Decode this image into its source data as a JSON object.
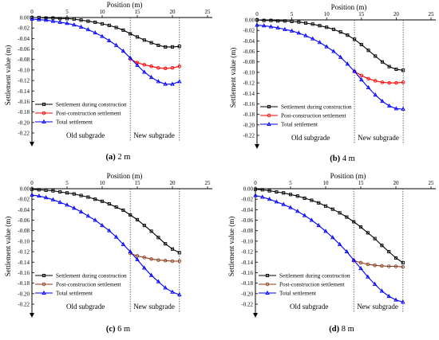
{
  "chart_data": [
    {
      "type": "line",
      "panel_label": "(a) 2 m",
      "xlabel": "Position (m)",
      "ylabel": "Settlement value (m)",
      "xlim": [
        0,
        25
      ],
      "ylim": [
        -0.22,
        0
      ],
      "xticks": [
        "0",
        "5",
        "10",
        "15",
        "20",
        "25"
      ],
      "yticks": [
        "0.00",
        "-0.02",
        "-0.04",
        "-0.06",
        "-0.08",
        "-0.10",
        "-0.12",
        "-0.14",
        "-0.16",
        "-0.18",
        "-0.20",
        "-0.22"
      ],
      "region_labels": [
        "Old subgrade",
        "New subgrade"
      ],
      "boundary_x": 14,
      "end_x": 21,
      "legend_position": "bottom-left",
      "series": [
        {
          "name": "Settlement during construction",
          "color": "#000000",
          "marker": "square",
          "x": [
            0,
            1,
            2,
            3,
            4,
            5,
            6,
            7,
            8,
            9,
            10,
            11,
            12,
            13,
            14,
            15,
            16,
            17,
            18,
            19,
            20,
            21
          ],
          "y": [
            0,
            0,
            -0.001,
            -0.001,
            -0.002,
            -0.002,
            -0.003,
            -0.005,
            -0.007,
            -0.009,
            -0.012,
            -0.015,
            -0.019,
            -0.024,
            -0.031,
            -0.037,
            -0.043,
            -0.048,
            -0.053,
            -0.056,
            -0.056,
            -0.055
          ]
        },
        {
          "name": "Post-construction settlement",
          "color": "#ff0000",
          "marker": "circle",
          "x": [
            14,
            15,
            16,
            17,
            18,
            19,
            20,
            21
          ],
          "y": [
            -0.079,
            -0.086,
            -0.09,
            -0.093,
            -0.096,
            -0.097,
            -0.096,
            -0.093
          ]
        },
        {
          "name": "Total settlement",
          "color": "#0000ff",
          "marker": "triangle",
          "x": [
            0,
            1,
            2,
            3,
            4,
            5,
            6,
            7,
            8,
            9,
            10,
            11,
            12,
            13,
            14,
            15,
            16,
            17,
            18,
            19,
            20,
            21
          ],
          "y": [
            -0.003,
            -0.004,
            -0.005,
            -0.007,
            -0.009,
            -0.011,
            -0.014,
            -0.018,
            -0.023,
            -0.029,
            -0.036,
            -0.044,
            -0.053,
            -0.064,
            -0.077,
            -0.091,
            -0.104,
            -0.114,
            -0.122,
            -0.127,
            -0.127,
            -0.122
          ]
        }
      ]
    },
    {
      "type": "line",
      "panel_label": "(b) 4 m",
      "xlabel": "Position (m)",
      "ylabel": "Settlement value (m)",
      "xlim": [
        0,
        25
      ],
      "ylim": [
        -0.22,
        0
      ],
      "xticks": [
        "0",
        "5",
        "10",
        "15",
        "20",
        "25"
      ],
      "yticks": [
        "0.00",
        "-0.02",
        "-0.04",
        "-0.06",
        "-0.08",
        "-0.10",
        "-0.12",
        "-0.14",
        "-0.16",
        "-0.18",
        "-0.20",
        "-0.22"
      ],
      "region_labels": [
        "Old subgrade",
        "New subgrade"
      ],
      "boundary_x": 14,
      "end_x": 21,
      "legend_position": "bottom-left",
      "series": [
        {
          "name": "Settlement during construction",
          "color": "#000000",
          "marker": "square",
          "x": [
            0,
            1,
            2,
            3,
            4,
            5,
            6,
            7,
            8,
            9,
            10,
            11,
            12,
            13,
            14,
            15,
            16,
            17,
            18,
            19,
            20,
            21
          ],
          "y": [
            0,
            -0.001,
            -0.001,
            -0.002,
            -0.002,
            -0.003,
            -0.004,
            -0.006,
            -0.008,
            -0.011,
            -0.014,
            -0.018,
            -0.023,
            -0.029,
            -0.037,
            -0.047,
            -0.058,
            -0.069,
            -0.08,
            -0.089,
            -0.094,
            -0.096
          ]
        },
        {
          "name": "Post-construction settlement",
          "color": "#ff0000",
          "marker": "circle",
          "x": [
            14,
            15,
            16,
            17,
            18,
            19,
            20,
            21
          ],
          "y": [
            -0.098,
            -0.106,
            -0.112,
            -0.116,
            -0.119,
            -0.12,
            -0.12,
            -0.119
          ]
        },
        {
          "name": "Total settlement",
          "color": "#0000ff",
          "marker": "triangle",
          "x": [
            0,
            1,
            2,
            3,
            4,
            5,
            6,
            7,
            8,
            9,
            10,
            11,
            12,
            13,
            14,
            15,
            16,
            17,
            18,
            19,
            20,
            21
          ],
          "y": [
            -0.01,
            -0.011,
            -0.013,
            -0.015,
            -0.018,
            -0.021,
            -0.025,
            -0.03,
            -0.036,
            -0.043,
            -0.051,
            -0.06,
            -0.071,
            -0.084,
            -0.098,
            -0.114,
            -0.129,
            -0.143,
            -0.155,
            -0.164,
            -0.169,
            -0.17
          ]
        }
      ]
    },
    {
      "type": "line",
      "panel_label": "(c) 6 m",
      "xlabel": "Position (m)",
      "ylabel": "Settlement value (m)",
      "xlim": [
        0,
        25
      ],
      "ylim": [
        -0.22,
        0
      ],
      "xticks": [
        "0",
        "5",
        "10",
        "15",
        "20",
        "25"
      ],
      "yticks": [
        "0.00",
        "-0.02",
        "-0.04",
        "-0.06",
        "-0.08",
        "-0.10",
        "-0.12",
        "-0.14",
        "-0.16",
        "-0.18",
        "-0.20",
        "-0.22"
      ],
      "region_labels": [
        "Old subgrade",
        "New subgrade"
      ],
      "boundary_x": 14,
      "end_x": 21,
      "legend_position": "bottom-left",
      "series": [
        {
          "name": "Settlement during construction",
          "color": "#000000",
          "marker": "square",
          "x": [
            0,
            1,
            2,
            3,
            4,
            5,
            6,
            7,
            8,
            9,
            10,
            11,
            12,
            13,
            14,
            15,
            16,
            17,
            18,
            19,
            20,
            21
          ],
          "y": [
            -0.001,
            -0.002,
            -0.003,
            -0.004,
            -0.006,
            -0.008,
            -0.01,
            -0.013,
            -0.016,
            -0.02,
            -0.024,
            -0.029,
            -0.035,
            -0.041,
            -0.05,
            -0.059,
            -0.07,
            -0.081,
            -0.093,
            -0.105,
            -0.115,
            -0.122
          ]
        },
        {
          "name": "Post-construction settlement",
          "color": "#8b3a1a",
          "marker": "circle",
          "x": [
            14,
            15,
            16,
            17,
            18,
            19,
            20,
            21
          ],
          "y": [
            -0.123,
            -0.128,
            -0.131,
            -0.134,
            -0.136,
            -0.137,
            -0.138,
            -0.138
          ]
        },
        {
          "name": "Total settlement",
          "color": "#0000ff",
          "marker": "triangle",
          "x": [
            0,
            1,
            2,
            3,
            4,
            5,
            6,
            7,
            8,
            9,
            10,
            11,
            12,
            13,
            14,
            15,
            16,
            17,
            18,
            19,
            20,
            21
          ],
          "y": [
            -0.012,
            -0.014,
            -0.017,
            -0.021,
            -0.026,
            -0.031,
            -0.037,
            -0.044,
            -0.052,
            -0.06,
            -0.07,
            -0.08,
            -0.092,
            -0.106,
            -0.12,
            -0.135,
            -0.151,
            -0.165,
            -0.177,
            -0.189,
            -0.197,
            -0.202
          ]
        }
      ]
    },
    {
      "type": "line",
      "panel_label": "(d) 8 m",
      "xlabel": "Position (m)",
      "ylabel": "Settlement value (m)",
      "xlim": [
        0,
        25
      ],
      "ylim": [
        -0.22,
        0
      ],
      "xticks": [
        "0",
        "5",
        "10",
        "15",
        "20",
        "25"
      ],
      "yticks": [
        "0.00",
        "-0.02",
        "-0.04",
        "-0.06",
        "-0.08",
        "-0.10",
        "-0.12",
        "-0.14",
        "-0.16",
        "-0.18",
        "-0.20",
        "-0.22"
      ],
      "region_labels": [
        "Old subgrade",
        "New subgrade"
      ],
      "boundary_x": 14,
      "end_x": 21,
      "legend_position": "bottom-left",
      "series": [
        {
          "name": "Settlement during construction",
          "color": "#000000",
          "marker": "square",
          "x": [
            0,
            1,
            2,
            3,
            4,
            5,
            6,
            7,
            8,
            9,
            10,
            11,
            12,
            13,
            14,
            15,
            16,
            17,
            18,
            19,
            20,
            21
          ],
          "y": [
            -0.001,
            -0.002,
            -0.004,
            -0.006,
            -0.008,
            -0.011,
            -0.014,
            -0.018,
            -0.022,
            -0.027,
            -0.033,
            -0.039,
            -0.046,
            -0.054,
            -0.063,
            -0.073,
            -0.084,
            -0.095,
            -0.108,
            -0.12,
            -0.132,
            -0.141
          ]
        },
        {
          "name": "Post-construction settlement",
          "color": "#8b3a1a",
          "marker": "circle",
          "x": [
            14,
            15,
            16,
            17,
            18,
            19,
            20,
            21
          ],
          "y": [
            -0.137,
            -0.141,
            -0.144,
            -0.146,
            -0.147,
            -0.148,
            -0.148,
            -0.149
          ]
        },
        {
          "name": "Total settlement",
          "color": "#0000ff",
          "marker": "triangle",
          "x": [
            0,
            1,
            2,
            3,
            4,
            5,
            6,
            7,
            8,
            9,
            10,
            11,
            12,
            13,
            14,
            15,
            16,
            17,
            18,
            19,
            20,
            21
          ],
          "y": [
            -0.013,
            -0.016,
            -0.02,
            -0.025,
            -0.03,
            -0.036,
            -0.043,
            -0.051,
            -0.06,
            -0.07,
            -0.081,
            -0.093,
            -0.106,
            -0.12,
            -0.136,
            -0.152,
            -0.168,
            -0.182,
            -0.195,
            -0.205,
            -0.212,
            -0.216
          ]
        }
      ]
    }
  ]
}
